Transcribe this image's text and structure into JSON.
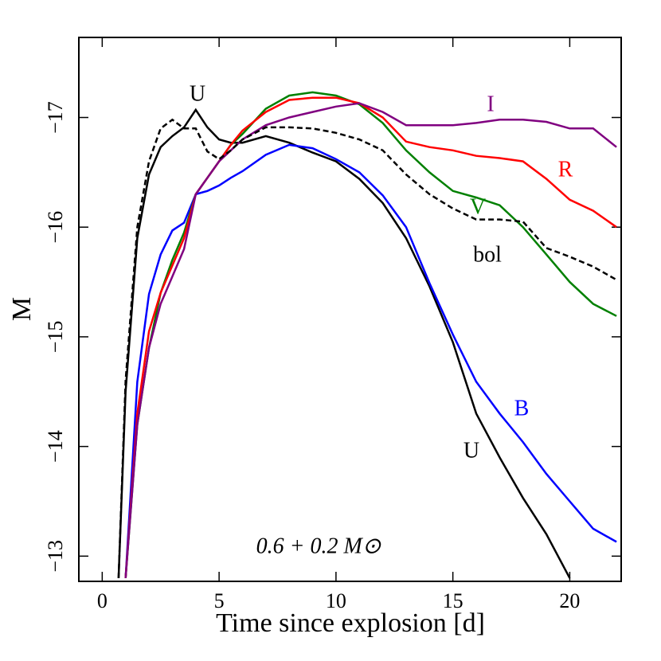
{
  "chart_data": {
    "type": "line",
    "xlabel": "Time since explosion [d]",
    "ylabel": "M",
    "annotation": "0.6 + 0.2 M⊙",
    "xlim": [
      -1,
      22.2
    ],
    "ylim": [
      -12.77,
      -17.73
    ],
    "xticks": [
      0,
      5,
      10,
      15,
      20
    ],
    "yticks": [
      {
        "value": -13,
        "label": "−13"
      },
      {
        "value": -14,
        "label": "−14"
      },
      {
        "value": -15,
        "label": "−15"
      },
      {
        "value": -16,
        "label": "−16"
      },
      {
        "value": -17,
        "label": "−17"
      }
    ],
    "x": [
      0.7,
      1,
      1.5,
      2,
      2.5,
      3,
      3.5,
      4,
      4.5,
      5,
      5.5,
      6,
      7,
      8,
      9,
      10,
      11,
      12,
      13,
      14,
      15,
      16,
      17,
      18,
      19,
      20,
      21,
      22
    ],
    "series": [
      {
        "name": "U",
        "color": "#000000",
        "dashed": false,
        "values": [
          -12.8,
          -14.5,
          -15.9,
          -16.48,
          -16.73,
          -16.83,
          -16.91,
          -17.07,
          -16.91,
          -16.8,
          -16.77,
          -16.77,
          -16.83,
          -16.77,
          -16.68,
          -16.6,
          -16.44,
          -16.22,
          -15.9,
          -15.46,
          -14.95,
          -14.3,
          -13.9,
          -13.53,
          -13.2,
          -12.8,
          null,
          null
        ]
      },
      {
        "name": "B",
        "color": "#0000ff",
        "dashed": false,
        "values": [
          null,
          -12.8,
          -14.59,
          -15.39,
          -15.75,
          -15.97,
          -16.04,
          -16.3,
          -16.33,
          -16.38,
          -16.45,
          -16.51,
          -16.66,
          -16.75,
          -16.72,
          -16.62,
          -16.5,
          -16.29,
          -16.0,
          -15.49,
          -15.02,
          -14.59,
          -14.3,
          -14.04,
          -13.75,
          -13.5,
          -13.25,
          -13.13
        ]
      },
      {
        "name": "V",
        "color": "#008000",
        "dashed": false,
        "values": [
          null,
          -12.8,
          -14.2,
          -14.9,
          -15.4,
          -15.7,
          -15.95,
          -16.3,
          -16.45,
          -16.6,
          -16.75,
          -16.85,
          -17.08,
          -17.2,
          -17.23,
          -17.2,
          -17.12,
          -16.95,
          -16.7,
          -16.5,
          -16.33,
          -16.27,
          -16.2,
          -16.0,
          -15.75,
          -15.5,
          -15.3,
          -15.19
        ]
      },
      {
        "name": "R",
        "color": "#ff0000",
        "dashed": false,
        "values": [
          null,
          -12.8,
          -14.3,
          -15.05,
          -15.4,
          -15.65,
          -15.9,
          -16.3,
          -16.45,
          -16.6,
          -16.75,
          -16.88,
          -17.05,
          -17.16,
          -17.18,
          -17.18,
          -17.13,
          -17.0,
          -16.78,
          -16.73,
          -16.7,
          -16.65,
          -16.63,
          -16.6,
          -16.44,
          -16.25,
          -16.15,
          -16.0
        ]
      },
      {
        "name": "I",
        "color": "#800080",
        "dashed": false,
        "values": [
          null,
          -12.8,
          -14.2,
          -14.9,
          -15.3,
          -15.55,
          -15.8,
          -16.3,
          -16.45,
          -16.6,
          -16.7,
          -16.8,
          -16.93,
          -17.0,
          -17.05,
          -17.1,
          -17.13,
          -17.05,
          -16.93,
          -16.93,
          -16.93,
          -16.95,
          -16.98,
          -16.98,
          -16.96,
          -16.9,
          -16.9,
          -16.73
        ]
      },
      {
        "name": "bol",
        "color": "#000000",
        "dashed": true,
        "values": [
          -12.8,
          -14.6,
          -16.0,
          -16.6,
          -16.9,
          -16.98,
          -16.9,
          -16.9,
          -16.69,
          -16.62,
          -16.7,
          -16.8,
          -16.91,
          -16.91,
          -16.9,
          -16.86,
          -16.8,
          -16.7,
          -16.48,
          -16.3,
          -16.17,
          -16.07,
          -16.07,
          -16.05,
          -15.81,
          -15.73,
          -15.64,
          -15.52
        ]
      }
    ]
  }
}
